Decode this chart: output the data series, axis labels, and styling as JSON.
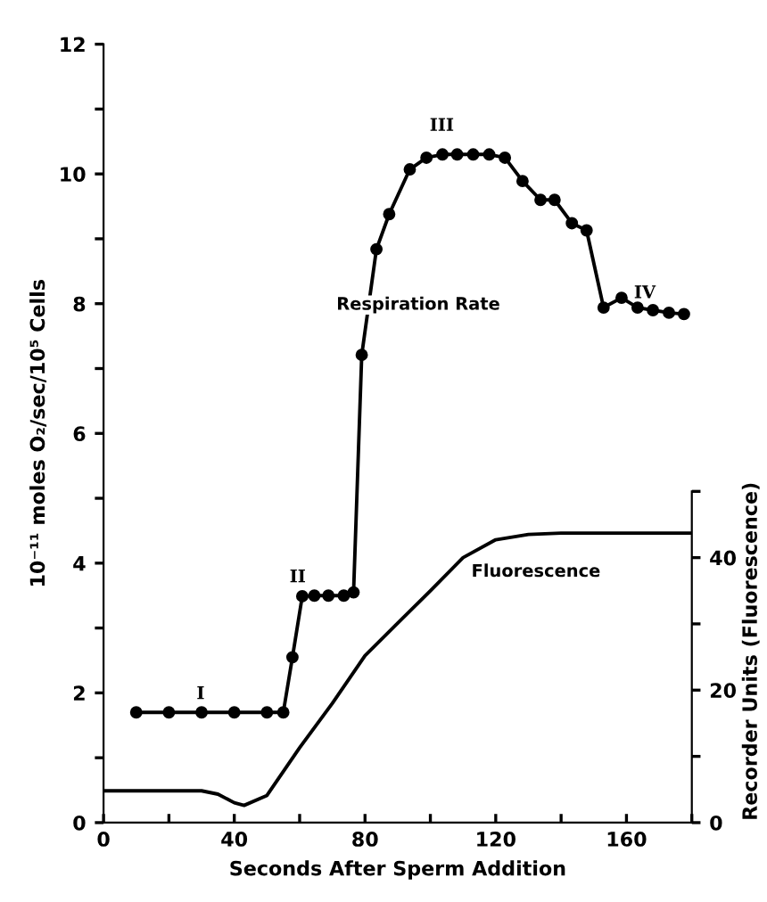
{
  "chart_data": {
    "type": "line",
    "xlabel": "Seconds After Sperm Addition",
    "ylabel": "10⁻¹¹ moles O₂/sec/10⁵ Cells",
    "y2label": "Recorder Units (Fluorescence)",
    "xlim": [
      0,
      180
    ],
    "xticks": [
      0,
      {
        "value": 20,
        "label": null
      },
      40,
      {
        "value": 60,
        "label": null
      },
      80,
      {
        "value": 100,
        "label": null
      },
      120,
      {
        "value": 140,
        "label": null
      },
      160,
      {
        "value": 180,
        "label": null
      }
    ],
    "ylim": [
      0,
      12
    ],
    "yticks": [
      0,
      {
        "value": 1,
        "label": null
      },
      2,
      {
        "value": 3,
        "label": null
      },
      4,
      {
        "value": 5,
        "label": null
      },
      6,
      {
        "value": 7,
        "label": null
      },
      8,
      {
        "value": 9,
        "label": null
      },
      10,
      {
        "value": 11,
        "label": null
      },
      12
    ],
    "y2lim": [
      0,
      117.5
    ],
    "y2ticks": [
      0,
      {
        "value": 10,
        "label": null
      },
      20,
      {
        "value": 30,
        "label": null
      },
      40,
      {
        "value": 50,
        "label": null
      }
    ],
    "grid": false,
    "series": [
      {
        "name": "Respiration Rate",
        "color": "#000000",
        "marker": "circle",
        "x": [
          10,
          20,
          30,
          40,
          50,
          55,
          57.8,
          60.8,
          64.5,
          68.8,
          73.5,
          76.5,
          79,
          83.5,
          87.4,
          93.7,
          98.8,
          103.7,
          108.2,
          113.1,
          118,
          122.8,
          128.2,
          133.7,
          138,
          143.3,
          147.8,
          153,
          158.5,
          163.4,
          168.1,
          173,
          177.6
        ],
        "values": [
          1.7,
          1.7,
          1.7,
          1.7,
          1.7,
          1.7,
          2.55,
          3.49,
          3.5,
          3.5,
          3.5,
          3.55,
          7.21,
          8.84,
          9.38,
          10.07,
          10.25,
          10.3,
          10.3,
          10.3,
          10.3,
          10.25,
          9.89,
          9.6,
          9.6,
          9.24,
          9.13,
          7.94,
          8.09,
          7.94,
          7.9,
          7.86,
          7.84
        ]
      },
      {
        "name": "Fluorescence",
        "color": "#000000",
        "marker": "none",
        "axis": "y2",
        "x": [
          0,
          10,
          20,
          30,
          35,
          40,
          43,
          50,
          60,
          70,
          80,
          90,
          100,
          110,
          120,
          130,
          140,
          160,
          180
        ],
        "values": [
          4.8,
          4.8,
          4.8,
          4.8,
          4.3,
          3.0,
          2.6,
          4.1,
          11.3,
          18,
          25.2,
          30.1,
          35,
          40,
          42.7,
          43.5,
          43.7,
          43.7,
          43.7
        ]
      }
    ],
    "annotations": [
      "I",
      "II",
      "III",
      "IV"
    ]
  }
}
